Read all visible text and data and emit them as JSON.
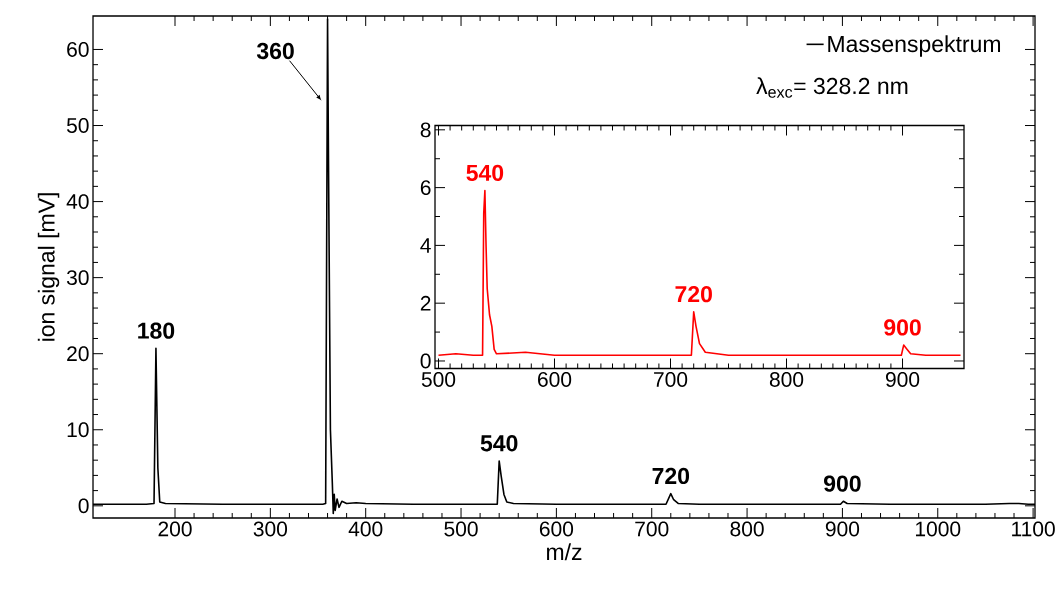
{
  "chart_data": [
    {
      "type": "line",
      "xlabel": "m/z",
      "ylabel": "ion signal [mV]",
      "xlim": [
        114,
        1102
      ],
      "ylim": [
        -1.6,
        64.4
      ],
      "xticks": [
        200,
        300,
        400,
        500,
        600,
        700,
        800,
        900,
        1000,
        1100
      ],
      "yticks": [
        0,
        10,
        20,
        30,
        40,
        50,
        60
      ],
      "legend": "top right",
      "series": [
        {
          "name": "Massenspektrum",
          "color": "#000000",
          "x": [
            114,
            170,
            178,
            180,
            182,
            184,
            190,
            250,
            300,
            355,
            358,
            360,
            361,
            363,
            365,
            366,
            367,
            368,
            370,
            372,
            375,
            380,
            390,
            400,
            450,
            500,
            538,
            540,
            542,
            545,
            548,
            555,
            600,
            650,
            715,
            720,
            723,
            728,
            750,
            800,
            850,
            898,
            901,
            905,
            950,
            1000,
            1050,
            1075,
            1085,
            1095,
            1102
          ],
          "values": [
            0.2,
            0.2,
            0.3,
            20.7,
            5,
            0.5,
            0.3,
            0.2,
            0.2,
            0.2,
            0.3,
            64,
            45,
            10,
            3,
            -1.0,
            1.5,
            -0.6,
            0.9,
            -0.2,
            0.6,
            0.3,
            0.4,
            0.3,
            0.2,
            0.2,
            0.2,
            5.9,
            4,
            1.5,
            0.5,
            0.3,
            0.2,
            0.2,
            0.2,
            1.6,
            0.8,
            0.3,
            0.2,
            0.2,
            0.2,
            0.2,
            0.6,
            0.3,
            0.2,
            0.2,
            0.2,
            0.3,
            0.3,
            0.2,
            0.2
          ]
        }
      ],
      "annotations": [
        {
          "text": "180",
          "x": 180,
          "y": 20.7
        },
        {
          "text": "360",
          "x": 360,
          "y": 53
        },
        {
          "text": "540",
          "x": 540,
          "y": 5.9
        },
        {
          "text": "720",
          "x": 720,
          "y": 1.6
        },
        {
          "text": "900",
          "x": 900,
          "y": 0.6
        },
        "λ$_{exc}$= 328.2 nm"
      ]
    },
    {
      "type": "line",
      "xlim": [
        497,
        953
      ],
      "ylim": [
        -0.26,
        8.15
      ],
      "xticks": [
        500,
        600,
        700,
        800,
        900
      ],
      "yticks": [
        0,
        2,
        4,
        6,
        8
      ],
      "series": [
        {
          "color": "#ff0000",
          "x": [
            500,
            515,
            530,
            538,
            539,
            540,
            541,
            542,
            544,
            546,
            548,
            550,
            575,
            600,
            650,
            700,
            718,
            720,
            722,
            725,
            730,
            750,
            800,
            850,
            880,
            899,
            901,
            904,
            907,
            920,
            950
          ],
          "values": [
            0.2,
            0.25,
            0.2,
            0.2,
            5.1,
            5.9,
            4,
            2.5,
            1.6,
            1.2,
            0.4,
            0.25,
            0.3,
            0.2,
            0.2,
            0.2,
            0.2,
            1.7,
            1.2,
            0.6,
            0.3,
            0.2,
            0.2,
            0.2,
            0.2,
            0.2,
            0.55,
            0.4,
            0.25,
            0.2,
            0.2
          ]
        }
      ],
      "annotations": [
        {
          "text": "540",
          "x": 540,
          "y": 5.9
        },
        {
          "text": "720",
          "x": 720,
          "y": 1.7
        },
        {
          "text": "900",
          "x": 900,
          "y": 0.55
        }
      ]
    }
  ]
}
